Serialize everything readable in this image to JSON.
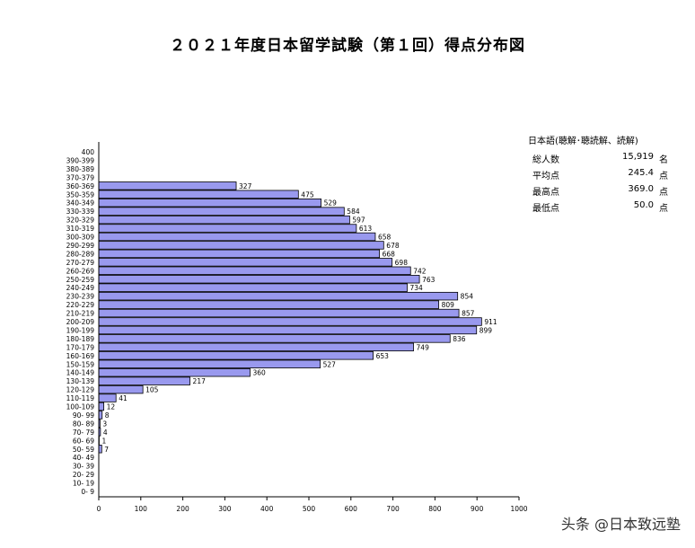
{
  "page": {
    "title": "２０２１年度日本留学試験（第１回）得点分布図",
    "watermark": "头条 @日本致远塾"
  },
  "stats": {
    "title": "日本語(聴解･聴読解、読解)",
    "rows": [
      {
        "label": "総人数",
        "value": "15,919",
        "unit": "名"
      },
      {
        "label": "平均点",
        "value": "245.4",
        "unit": "点"
      },
      {
        "label": "最高点",
        "value": "369.0",
        "unit": "点"
      },
      {
        "label": "最低点",
        "value": "50.0",
        "unit": "点"
      }
    ]
  },
  "chart_data": {
    "type": "bar",
    "orientation": "horizontal",
    "bar_color": "#9999ee",
    "bar_stroke": "#000000",
    "categories": [
      "400",
      "390-399",
      "380-389",
      "370-379",
      "360-369",
      "350-359",
      "340-349",
      "330-339",
      "320-329",
      "310-319",
      "300-309",
      "290-299",
      "280-289",
      "270-279",
      "260-269",
      "250-259",
      "240-249",
      "230-239",
      "220-229",
      "210-219",
      "200-209",
      "190-199",
      "180-189",
      "170-179",
      "160-169",
      "150-159",
      "140-149",
      "130-139",
      "120-129",
      "110-119",
      "100-109",
      "90- 99",
      "80- 89",
      "70- 79",
      "60- 69",
      "50- 59",
      "40- 49",
      "30- 39",
      "20- 29",
      "10- 19",
      "0- 9"
    ],
    "values": [
      0,
      0,
      0,
      0,
      327,
      475,
      529,
      584,
      597,
      613,
      658,
      678,
      668,
      698,
      742,
      763,
      734,
      854,
      809,
      857,
      911,
      899,
      836,
      749,
      653,
      527,
      360,
      217,
      105,
      41,
      12,
      8,
      3,
      4,
      1,
      7,
      0,
      0,
      0,
      0,
      0
    ],
    "xlim": [
      0,
      1000
    ],
    "xticks": [
      0,
      100,
      200,
      300,
      400,
      500,
      600,
      700,
      800,
      900,
      1000
    ],
    "grid": false
  }
}
